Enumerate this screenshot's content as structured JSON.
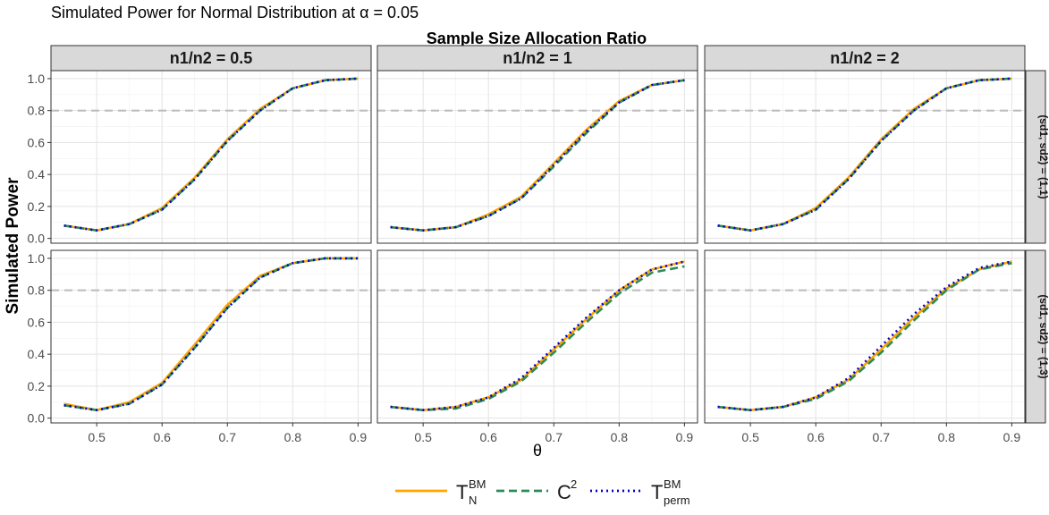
{
  "chart_data": {
    "type": "line",
    "title": "Simulated Power for Normal Distribution at α = 0.05",
    "facet_col_title": "Sample Size Allocation Ratio",
    "col_facets": [
      "n1/n2 =  0.5",
      "n1/n2 =  1",
      "n1/n2 =  2"
    ],
    "row_facets": [
      "(sd1, sd2) = (1,1)",
      "(sd1, sd2) = (1,3)"
    ],
    "xlabel": "θ",
    "ylabel": "Simulated Power",
    "xlim": [
      0.43,
      0.92
    ],
    "ylim": [
      -0.03,
      1.05
    ],
    "x_ticks": [
      "0.5",
      "0.6",
      "0.7",
      "0.8",
      "0.9"
    ],
    "y_ticks": [
      "0.0",
      "0.2",
      "0.4",
      "0.6",
      "0.8",
      "1.0"
    ],
    "reference_line": 0.8,
    "x": [
      0.45,
      0.5,
      0.55,
      0.6,
      0.65,
      0.7,
      0.75,
      0.8,
      0.85,
      0.9
    ],
    "series_styles": [
      {
        "name": "T_N^BM",
        "color": "#FFA500",
        "dash": "solid"
      },
      {
        "name": "C^2",
        "color": "#2E8B57",
        "dash": "dashed"
      },
      {
        "name": "T_perm^BM",
        "color": "#0000CD",
        "dash": "dotted"
      }
    ],
    "panels": [
      {
        "row": 0,
        "col": 0,
        "series": [
          {
            "name": "T_N^BM",
            "values": [
              0.08,
              0.05,
              0.09,
              0.19,
              0.38,
              0.62,
              0.81,
              0.94,
              0.99,
              1.0
            ]
          },
          {
            "name": "C^2",
            "values": [
              0.08,
              0.05,
              0.09,
              0.18,
              0.37,
              0.61,
              0.8,
              0.94,
              0.99,
              1.0
            ]
          },
          {
            "name": "T_perm^BM",
            "values": [
              0.08,
              0.05,
              0.09,
              0.18,
              0.37,
              0.61,
              0.8,
              0.94,
              0.99,
              1.0
            ]
          }
        ]
      },
      {
        "row": 0,
        "col": 1,
        "series": [
          {
            "name": "T_N^BM",
            "values": [
              0.07,
              0.05,
              0.07,
              0.15,
              0.26,
              0.47,
              0.68,
              0.86,
              0.96,
              0.99
            ]
          },
          {
            "name": "C^2",
            "values": [
              0.07,
              0.05,
              0.07,
              0.14,
              0.25,
              0.45,
              0.66,
              0.85,
              0.96,
              0.99
            ]
          },
          {
            "name": "T_perm^BM",
            "values": [
              0.07,
              0.05,
              0.07,
              0.14,
              0.25,
              0.46,
              0.67,
              0.85,
              0.96,
              0.99
            ]
          }
        ]
      },
      {
        "row": 0,
        "col": 2,
        "series": [
          {
            "name": "T_N^BM",
            "values": [
              0.08,
              0.05,
              0.09,
              0.19,
              0.38,
              0.62,
              0.81,
              0.94,
              0.99,
              1.0
            ]
          },
          {
            "name": "C^2",
            "values": [
              0.08,
              0.05,
              0.09,
              0.18,
              0.37,
              0.61,
              0.8,
              0.94,
              0.99,
              1.0
            ]
          },
          {
            "name": "T_perm^BM",
            "values": [
              0.08,
              0.05,
              0.09,
              0.18,
              0.37,
              0.61,
              0.8,
              0.94,
              0.99,
              1.0
            ]
          }
        ]
      },
      {
        "row": 1,
        "col": 0,
        "series": [
          {
            "name": "T_N^BM",
            "values": [
              0.09,
              0.05,
              0.1,
              0.22,
              0.46,
              0.71,
              0.89,
              0.97,
              1.0,
              1.0
            ]
          },
          {
            "name": "C^2",
            "values": [
              0.08,
              0.05,
              0.09,
              0.21,
              0.44,
              0.69,
              0.88,
              0.97,
              1.0,
              1.0
            ]
          },
          {
            "name": "T_perm^BM",
            "values": [
              0.08,
              0.05,
              0.09,
              0.21,
              0.44,
              0.69,
              0.88,
              0.97,
              1.0,
              1.0
            ]
          }
        ]
      },
      {
        "row": 1,
        "col": 1,
        "series": [
          {
            "name": "T_N^BM",
            "values": [
              0.07,
              0.05,
              0.07,
              0.13,
              0.24,
              0.43,
              0.62,
              0.8,
              0.93,
              0.98
            ]
          },
          {
            "name": "C^2",
            "values": [
              0.07,
              0.05,
              0.06,
              0.12,
              0.23,
              0.41,
              0.6,
              0.78,
              0.91,
              0.95
            ]
          },
          {
            "name": "T_perm^BM",
            "values": [
              0.07,
              0.05,
              0.07,
              0.13,
              0.25,
              0.44,
              0.63,
              0.8,
              0.93,
              0.98
            ]
          }
        ]
      },
      {
        "row": 1,
        "col": 2,
        "series": [
          {
            "name": "T_N^BM",
            "values": [
              0.07,
              0.05,
              0.07,
              0.13,
              0.24,
              0.43,
              0.63,
              0.81,
              0.93,
              0.98
            ]
          },
          {
            "name": "C^2",
            "values": [
              0.07,
              0.05,
              0.07,
              0.12,
              0.23,
              0.41,
              0.61,
              0.8,
              0.93,
              0.97
            ]
          },
          {
            "name": "T_perm^BM",
            "values": [
              0.07,
              0.05,
              0.07,
              0.13,
              0.25,
              0.45,
              0.65,
              0.82,
              0.94,
              0.98
            ]
          }
        ]
      }
    ]
  },
  "legend": {
    "items": [
      {
        "base": "T",
        "sub": "N",
        "sup": "BM",
        "color": "#FFA500",
        "dash": "solid"
      },
      {
        "base": "C",
        "sub": "",
        "sup": "2",
        "color": "#2E8B57",
        "dash": "dashed"
      },
      {
        "base": "T",
        "sub": "perm",
        "sup": "BM",
        "color": "#0000CD",
        "dash": "dotted"
      }
    ]
  }
}
